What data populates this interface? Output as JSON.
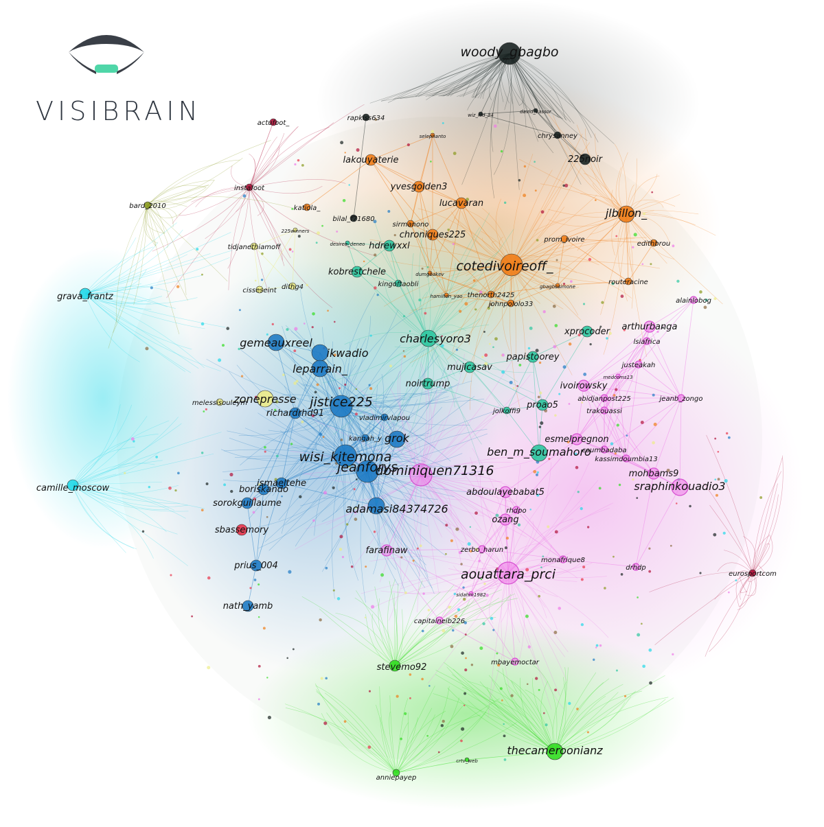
{
  "brand": {
    "name": "VISIBRAIN",
    "logo_icon": "eye-icon",
    "logo_color": "#3a3f47",
    "accent": "#4fd6a8"
  },
  "communities": {
    "black": "#1a2422",
    "orange": "#f07d18",
    "blue": "#1f7bc4",
    "pink": "#ee7ae8",
    "teal": "#2ec7a0",
    "green": "#33dd22",
    "cyan": "#22d8e8",
    "yellow": "#ecec88",
    "red": "#e8334a",
    "crimson": "#b0123a",
    "olive": "#8a9a20",
    "brown": "#8a6a40"
  },
  "nodes": [
    {
      "label": "woody_gbagbo",
      "c": "black",
      "s": "xl"
    },
    {
      "label": "rapkiss634",
      "c": "black",
      "s": "s"
    },
    {
      "label": "chrysanney",
      "c": "black",
      "s": "s"
    },
    {
      "label": "225noir",
      "c": "black",
      "s": "m"
    },
    {
      "label": "wiz_kid_34",
      "c": "black",
      "s": "xs"
    },
    {
      "label": "david_vassor",
      "c": "black",
      "s": "xs"
    },
    {
      "label": "selephanto",
      "c": "orange",
      "s": "xs"
    },
    {
      "label": "lakouyaterie",
      "c": "orange",
      "s": "m"
    },
    {
      "label": "yvesgolden3",
      "c": "orange",
      "s": "m"
    },
    {
      "label": "lucavaran",
      "c": "orange",
      "s": "m"
    },
    {
      "label": "jlbillon_",
      "c": "orange",
      "s": "l"
    },
    {
      "label": "katiola_",
      "c": "orange",
      "s": "s"
    },
    {
      "label": "bilal_f71680",
      "c": "black",
      "s": "s"
    },
    {
      "label": "sirmanono",
      "c": "orange",
      "s": "s"
    },
    {
      "label": "chroniques225",
      "c": "orange",
      "s": "m"
    },
    {
      "label": "prom_ivoire",
      "c": "orange",
      "s": "s"
    },
    {
      "label": "edithbrou",
      "c": "orange",
      "s": "s"
    },
    {
      "label": "cotedivoireoff_",
      "c": "orange",
      "s": "xl"
    },
    {
      "label": "routeracine",
      "c": "orange",
      "s": "s"
    },
    {
      "label": "hdrewxxl",
      "c": "teal",
      "s": "m"
    },
    {
      "label": "kobrestchele",
      "c": "teal",
      "s": "m"
    },
    {
      "label": "kingoftaobli",
      "c": "teal",
      "s": "s"
    },
    {
      "label": "dumgbakev",
      "c": "orange",
      "s": "xs"
    },
    {
      "label": "thenorth2425",
      "c": "orange",
      "s": "s"
    },
    {
      "label": "johnpololo33",
      "c": "orange",
      "s": "s"
    },
    {
      "label": "hamilton_yao",
      "c": "orange",
      "s": "xs"
    },
    {
      "label": "gbagbosimone",
      "c": "orange",
      "s": "xs"
    },
    {
      "label": "tidjanethiamoff",
      "c": "yellow",
      "s": "s"
    },
    {
      "label": "dithg4",
      "c": "yellow",
      "s": "s"
    },
    {
      "label": "cisseseint",
      "c": "yellow",
      "s": "s"
    },
    {
      "label": "225winners",
      "c": "yellow",
      "s": "xs"
    },
    {
      "label": "desiree_deneo",
      "c": "teal",
      "s": "xs"
    },
    {
      "label": "alainlobog",
      "c": "pink",
      "s": "s"
    },
    {
      "label": "arthurbanga",
      "c": "pink",
      "s": "m"
    },
    {
      "label": "lsiafrica",
      "c": "pink",
      "s": "s"
    },
    {
      "label": "xprocoder",
      "c": "teal",
      "s": "m"
    },
    {
      "label": "charlesyoro3",
      "c": "teal",
      "s": "l"
    },
    {
      "label": "papistoorey",
      "c": "teal",
      "s": "m"
    },
    {
      "label": "gemeauxreel",
      "c": "blue",
      "s": "l"
    },
    {
      "label": "ikwadio",
      "c": "blue",
      "s": "l"
    },
    {
      "label": "leparrain_",
      "c": "blue",
      "s": "l"
    },
    {
      "label": "mujicasav",
      "c": "teal",
      "s": "m"
    },
    {
      "label": "noirtrump",
      "c": "teal",
      "s": "m"
    },
    {
      "label": "ivoirowsky",
      "c": "pink",
      "s": "m"
    },
    {
      "label": "justeakah",
      "c": "pink",
      "s": "s"
    },
    {
      "label": "medcoms13",
      "c": "pink",
      "s": "xs"
    },
    {
      "label": "abidjanpost225",
      "c": "pink",
      "s": "s"
    },
    {
      "label": "jeanb_zongo",
      "c": "pink",
      "s": "s"
    },
    {
      "label": "trakouassi",
      "c": "pink",
      "s": "s"
    },
    {
      "label": "zonepresse",
      "c": "yellow",
      "s": "l"
    },
    {
      "label": "melessisouleym",
      "c": "yellow",
      "s": "s"
    },
    {
      "label": "jistice225",
      "c": "blue",
      "s": "xl"
    },
    {
      "label": "richardrhd91",
      "c": "blue",
      "s": "m"
    },
    {
      "label": "vladimirvlapou",
      "c": "blue",
      "s": "s"
    },
    {
      "label": "proao5",
      "c": "teal",
      "s": "m"
    },
    {
      "label": "jolkoffi9",
      "c": "teal",
      "s": "s"
    },
    {
      "label": "grok",
      "c": "blue",
      "s": "l"
    },
    {
      "label": "kangah_y",
      "c": "blue",
      "s": "s"
    },
    {
      "label": "wisi_kitemona",
      "c": "blue",
      "s": "xl"
    },
    {
      "label": "jeanforys",
      "c": "blue",
      "s": "xl"
    },
    {
      "label": "ben_m_soumahoro",
      "c": "teal",
      "s": "l"
    },
    {
      "label": "esmelpregnon",
      "c": "pink",
      "s": "m"
    },
    {
      "label": "coumbadaba",
      "c": "pink",
      "s": "s"
    },
    {
      "label": "kassimdoumbia13",
      "c": "pink",
      "s": "s"
    },
    {
      "label": "mohbams9",
      "c": "pink",
      "s": "m"
    },
    {
      "label": "sraphinkouadio3",
      "c": "pink",
      "s": "l"
    },
    {
      "label": "dominiquen71316",
      "c": "pink",
      "s": "xl"
    },
    {
      "label": "boriskando",
      "c": "blue",
      "s": "m"
    },
    {
      "label": "ismaeltehe",
      "c": "blue",
      "s": "m"
    },
    {
      "label": "sorokguillaume",
      "c": "blue",
      "s": "m"
    },
    {
      "label": "adamasi84374726",
      "c": "blue",
      "s": "l"
    },
    {
      "label": "abdoulayebabat5",
      "c": "pink",
      "s": "m"
    },
    {
      "label": "rhdpo",
      "c": "pink",
      "s": "s"
    },
    {
      "label": "ozang",
      "c": "pink",
      "s": "m"
    },
    {
      "label": "sbassemory",
      "c": "red",
      "s": "m"
    },
    {
      "label": "farafinaw",
      "c": "pink",
      "s": "m"
    },
    {
      "label": "zerbo_harun",
      "c": "pink",
      "s": "s"
    },
    {
      "label": "monafrique8",
      "c": "pink",
      "s": "s"
    },
    {
      "label": "aouattara_prci",
      "c": "pink",
      "s": "xl"
    },
    {
      "label": "drhdp",
      "c": "pink",
      "s": "s"
    },
    {
      "label": "prius_004",
      "c": "blue",
      "s": "m"
    },
    {
      "label": "nath_yamb",
      "c": "blue",
      "s": "m"
    },
    {
      "label": "sidahm1982",
      "c": "pink",
      "s": "xs"
    },
    {
      "label": "capitaineib226",
      "c": "pink",
      "s": "s"
    },
    {
      "label": "mbayemoctar",
      "c": "pink",
      "s": "s"
    },
    {
      "label": "grava_frantz",
      "c": "cyan",
      "s": "m"
    },
    {
      "label": "camille_moscow",
      "c": "cyan",
      "s": "m"
    },
    {
      "label": "bard_2010",
      "c": "olive",
      "s": "s"
    },
    {
      "label": "instafoot",
      "c": "crimson",
      "s": "s"
    },
    {
      "label": "actufoot_",
      "c": "crimson",
      "s": "s"
    },
    {
      "label": "eurosportcom",
      "c": "crimson",
      "s": "s"
    },
    {
      "label": "stevemo92",
      "c": "green",
      "s": "m"
    },
    {
      "label": "thecameroonianz",
      "c": "green",
      "s": "l"
    },
    {
      "label": "anniepayep",
      "c": "green",
      "s": "s"
    },
    {
      "label": "crtv_web",
      "c": "green",
      "s": "xs"
    }
  ]
}
